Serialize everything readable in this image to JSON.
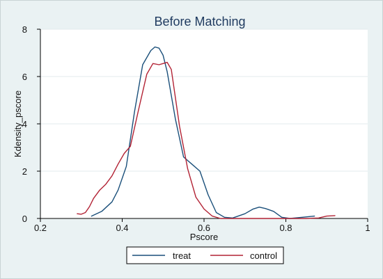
{
  "chart_data": {
    "type": "line",
    "title": "Before Matching",
    "xlabel": "Pscore",
    "ylabel": "Kdensity_pscore",
    "xlim": [
      0.2,
      1.0
    ],
    "ylim": [
      0,
      8
    ],
    "xticks": [
      0.2,
      0.4,
      0.6,
      0.8,
      1.0
    ],
    "xtick_labels": [
      "0.2",
      "0.4",
      "0.6",
      "0.8",
      "1"
    ],
    "yticks": [
      0,
      2,
      4,
      6,
      8
    ],
    "ytick_labels": [
      "0",
      "2",
      "4",
      "6",
      "8"
    ],
    "grid": true,
    "legend": "bottom",
    "series": [
      {
        "name": "treat",
        "color": "#1a4f7a",
        "x": [
          0.325,
          0.35,
          0.375,
          0.39,
          0.41,
          0.43,
          0.45,
          0.47,
          0.48,
          0.49,
          0.5,
          0.51,
          0.53,
          0.55,
          0.57,
          0.59,
          0.61,
          0.63,
          0.65,
          0.67,
          0.7,
          0.72,
          0.735,
          0.75,
          0.77,
          0.79,
          0.81,
          0.84,
          0.87
        ],
        "y": [
          0.1,
          0.3,
          0.7,
          1.2,
          2.2,
          4.5,
          6.5,
          7.1,
          7.25,
          7.2,
          6.9,
          6.2,
          4.2,
          2.6,
          2.3,
          2.0,
          1.0,
          0.25,
          0.05,
          0.02,
          0.2,
          0.4,
          0.48,
          0.42,
          0.3,
          0.05,
          0.0,
          0.05,
          0.1
        ]
      },
      {
        "name": "control",
        "color": "#b22234",
        "x": [
          0.29,
          0.3,
          0.31,
          0.32,
          0.33,
          0.345,
          0.36,
          0.375,
          0.39,
          0.405,
          0.42,
          0.44,
          0.46,
          0.475,
          0.49,
          0.5,
          0.51,
          0.52,
          0.54,
          0.56,
          0.58,
          0.6,
          0.62,
          0.64,
          0.66,
          0.7,
          0.75,
          0.8,
          0.85,
          0.88,
          0.9,
          0.92
        ],
        "y": [
          0.2,
          0.18,
          0.25,
          0.5,
          0.85,
          1.2,
          1.45,
          1.8,
          2.3,
          2.75,
          3.05,
          4.6,
          6.1,
          6.55,
          6.5,
          6.55,
          6.6,
          6.3,
          3.9,
          2.1,
          0.9,
          0.4,
          0.1,
          0.0,
          0.0,
          0.0,
          0.0,
          0.0,
          0.0,
          0.02,
          0.1,
          0.12
        ]
      }
    ]
  }
}
